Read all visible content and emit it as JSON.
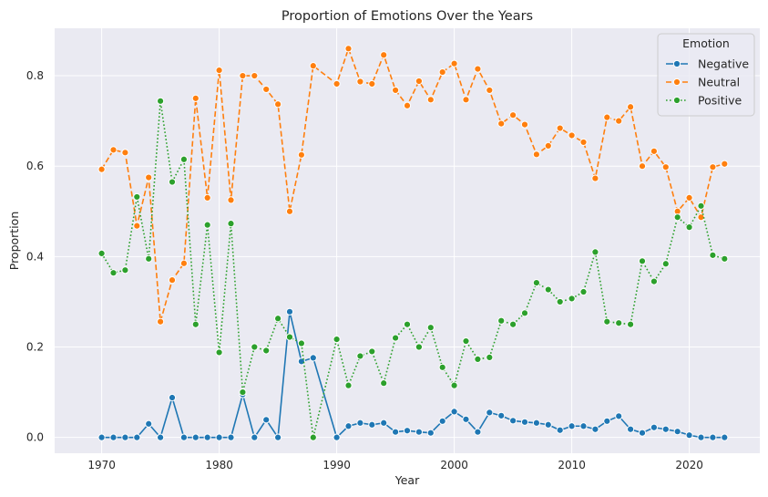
{
  "chart_data": {
    "type": "line",
    "title": "Proportion of Emotions Over the Years",
    "xlabel": "Year",
    "ylabel": "Proportion",
    "xlim": [
      1966,
      2026
    ],
    "ylim": [
      -0.035,
      0.905
    ],
    "xticks": [
      1970,
      1980,
      1990,
      2000,
      2010,
      2020
    ],
    "yticks": [
      0.0,
      0.2,
      0.4,
      0.6,
      0.8
    ],
    "ytick_labels": [
      "0.0",
      "0.2",
      "0.4",
      "0.6",
      "0.8"
    ],
    "grid": true,
    "legend": {
      "title": "Emotion",
      "placement": "top-right"
    },
    "series": [
      {
        "name": "Negative",
        "color": "#1f77b4",
        "dash": "solid",
        "points": [
          [
            1970,
            0
          ],
          [
            1971,
            0
          ],
          [
            1972,
            0
          ],
          [
            1973,
            0
          ],
          [
            1974,
            0.03
          ],
          [
            1975,
            0
          ],
          [
            1976,
            0.088
          ],
          [
            1977,
            0
          ],
          [
            1978,
            0
          ],
          [
            1979,
            0
          ],
          [
            1980,
            0
          ],
          [
            1981,
            0
          ],
          [
            1982,
            0.095
          ],
          [
            1983,
            0
          ],
          [
            1984,
            0.039
          ],
          [
            1985,
            0
          ],
          [
            1986,
            0.278
          ],
          [
            1987,
            0.168
          ],
          [
            1988,
            0.176
          ],
          [
            1990,
            0
          ],
          [
            1991,
            0.025
          ],
          [
            1992,
            0.032
          ],
          [
            1993,
            0.028
          ],
          [
            1994,
            0.032
          ],
          [
            1995,
            0.012
          ],
          [
            1996,
            0.015
          ],
          [
            1997,
            0.012
          ],
          [
            1998,
            0.01
          ],
          [
            1999,
            0.036
          ],
          [
            2000,
            0.057
          ],
          [
            2001,
            0.04
          ],
          [
            2002,
            0.012
          ],
          [
            2003,
            0.055
          ],
          [
            2004,
            0.048
          ],
          [
            2005,
            0.037
          ],
          [
            2006,
            0.034
          ],
          [
            2007,
            0.032
          ],
          [
            2008,
            0.028
          ],
          [
            2009,
            0.016
          ],
          [
            2010,
            0.025
          ],
          [
            2011,
            0.025
          ],
          [
            2012,
            0.018
          ],
          [
            2013,
            0.036
          ],
          [
            2014,
            0.047
          ],
          [
            2015,
            0.018
          ],
          [
            2016,
            0.01
          ],
          [
            2017,
            0.022
          ],
          [
            2018,
            0.018
          ],
          [
            2019,
            0.013
          ],
          [
            2020,
            0.005
          ],
          [
            2021,
            0
          ],
          [
            2022,
            0
          ],
          [
            2023,
            0
          ]
        ]
      },
      {
        "name": "Neutral",
        "color": "#ff7f0e",
        "dash": "dashed",
        "points": [
          [
            1970,
            0.593
          ],
          [
            1971,
            0.636
          ],
          [
            1972,
            0.63
          ],
          [
            1973,
            0.468
          ],
          [
            1974,
            0.575
          ],
          [
            1975,
            0.256
          ],
          [
            1976,
            0.348
          ],
          [
            1977,
            0.385
          ],
          [
            1978,
            0.75
          ],
          [
            1979,
            0.53
          ],
          [
            1980,
            0.812
          ],
          [
            1981,
            0.525
          ],
          [
            1982,
            0.8
          ],
          [
            1983,
            0.8
          ],
          [
            1984,
            0.77
          ],
          [
            1985,
            0.737
          ],
          [
            1986,
            0.5
          ],
          [
            1987,
            0.625
          ],
          [
            1988,
            0.822
          ],
          [
            1990,
            0.782
          ],
          [
            1991,
            0.86
          ],
          [
            1992,
            0.787
          ],
          [
            1993,
            0.782
          ],
          [
            1994,
            0.846
          ],
          [
            1995,
            0.768
          ],
          [
            1996,
            0.734
          ],
          [
            1997,
            0.788
          ],
          [
            1998,
            0.747
          ],
          [
            1999,
            0.808
          ],
          [
            2000,
            0.827
          ],
          [
            2001,
            0.747
          ],
          [
            2002,
            0.815
          ],
          [
            2003,
            0.768
          ],
          [
            2004,
            0.694
          ],
          [
            2005,
            0.713
          ],
          [
            2006,
            0.692
          ],
          [
            2007,
            0.626
          ],
          [
            2008,
            0.645
          ],
          [
            2009,
            0.684
          ],
          [
            2010,
            0.668
          ],
          [
            2011,
            0.653
          ],
          [
            2012,
            0.573
          ],
          [
            2013,
            0.708
          ],
          [
            2014,
            0.7
          ],
          [
            2015,
            0.731
          ],
          [
            2016,
            0.6
          ],
          [
            2017,
            0.633
          ],
          [
            2018,
            0.598
          ],
          [
            2019,
            0.5
          ],
          [
            2020,
            0.53
          ],
          [
            2021,
            0.487
          ],
          [
            2022,
            0.598
          ],
          [
            2023,
            0.605
          ]
        ]
      },
      {
        "name": "Positive",
        "color": "#2ca02c",
        "dash": "dotted",
        "points": [
          [
            1970,
            0.407
          ],
          [
            1971,
            0.364
          ],
          [
            1972,
            0.37
          ],
          [
            1973,
            0.532
          ],
          [
            1974,
            0.395
          ],
          [
            1975,
            0.744
          ],
          [
            1976,
            0.565
          ],
          [
            1977,
            0.615
          ],
          [
            1978,
            0.25
          ],
          [
            1979,
            0.47
          ],
          [
            1980,
            0.188
          ],
          [
            1981,
            0.473
          ],
          [
            1982,
            0.1
          ],
          [
            1983,
            0.2
          ],
          [
            1984,
            0.192
          ],
          [
            1985,
            0.263
          ],
          [
            1986,
            0.222
          ],
          [
            1987,
            0.208
          ],
          [
            1988,
            0
          ],
          [
            1990,
            0.217
          ],
          [
            1991,
            0.115
          ],
          [
            1992,
            0.18
          ],
          [
            1993,
            0.19
          ],
          [
            1994,
            0.12
          ],
          [
            1995,
            0.22
          ],
          [
            1996,
            0.25
          ],
          [
            1997,
            0.2
          ],
          [
            1998,
            0.243
          ],
          [
            1999,
            0.155
          ],
          [
            2000,
            0.115
          ],
          [
            2001,
            0.213
          ],
          [
            2002,
            0.173
          ],
          [
            2003,
            0.177
          ],
          [
            2004,
            0.258
          ],
          [
            2005,
            0.25
          ],
          [
            2006,
            0.275
          ],
          [
            2007,
            0.342
          ],
          [
            2008,
            0.327
          ],
          [
            2009,
            0.3
          ],
          [
            2010,
            0.307
          ],
          [
            2011,
            0.322
          ],
          [
            2012,
            0.41
          ],
          [
            2013,
            0.256
          ],
          [
            2014,
            0.253
          ],
          [
            2015,
            0.25
          ],
          [
            2016,
            0.39
          ],
          [
            2017,
            0.345
          ],
          [
            2018,
            0.384
          ],
          [
            2019,
            0.487
          ],
          [
            2020,
            0.465
          ],
          [
            2021,
            0.512
          ],
          [
            2022,
            0.403
          ],
          [
            2023,
            0.395
          ]
        ]
      }
    ]
  }
}
